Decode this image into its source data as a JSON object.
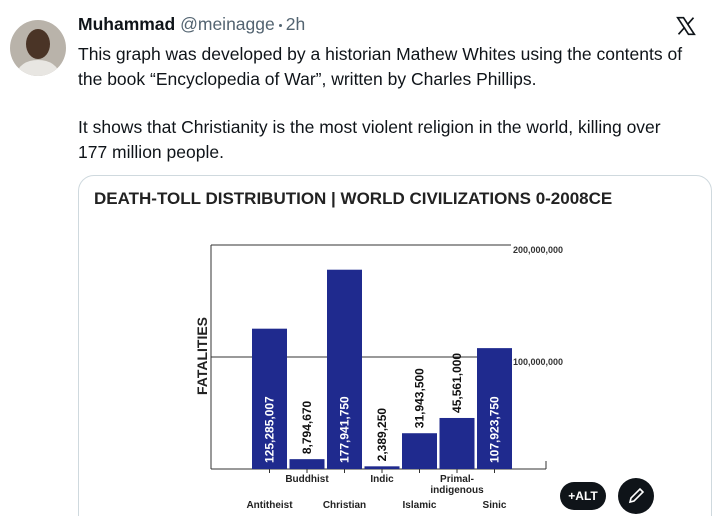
{
  "tweet": {
    "name": "Muhammad",
    "handle": "@meinagge",
    "time": "2h",
    "paragraphs": [
      [
        "This graph was developed by a historian Mathew Whites using the contents of",
        "the book “Encyclopedia of War”, written by Charles Phillips."
      ],
      [
        "It shows that Christianity is the most violent religion in the world, killing over",
        "177 million people."
      ]
    ]
  },
  "ui": {
    "alt_button": "+ALT"
  },
  "chart_data": {
    "type": "bar",
    "title": "DEATH-TOLL DISTRIBUTION | WORLD CIVILIZATIONS 0-2008CE",
    "y_label": "FATALITIES",
    "categories": [
      "Antitheist",
      "Buddhist",
      "Christian",
      "Indic",
      "Islamic",
      "Primal-indigenous",
      "Sinic"
    ],
    "values": [
      125285007,
      8794670,
      177941750,
      2389250,
      31943500,
      45561000,
      107923750
    ],
    "value_labels": [
      "125,285,007",
      "8,794,670",
      "177,941,750",
      "2,389,250",
      "31,943,500",
      "45,561,000",
      "107,923,750"
    ],
    "color": "#1f2a8e",
    "ylim": [
      0,
      200000000
    ],
    "yticks": [
      {
        "value": 100000000,
        "label": "100,000,000"
      },
      {
        "value": 200000000,
        "label": "200,000,000"
      }
    ],
    "grid": true
  }
}
